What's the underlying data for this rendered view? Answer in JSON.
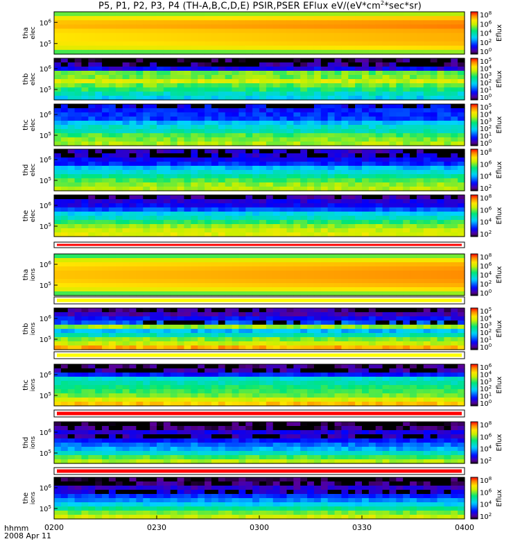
{
  "title": {
    "main": "P5, P1, P2, P3, P4 (TH-A,B,C,D,E) PSIR,PSER EFlux eV/(eV*cm",
    "exp": "2",
    "tail": "*sec*sr)"
  },
  "footer": {
    "format": "hhmm",
    "date": "2008 Apr 11"
  },
  "x_axis": {
    "ticks": [
      "0200",
      "0230",
      "0300",
      "0330",
      "0400"
    ],
    "range": [
      "02:00",
      "04:00"
    ]
  },
  "colorbar_label": "Eflux",
  "chart_data": [
    {
      "type": "heatmap",
      "name": "tha elec",
      "probe": "tha",
      "species": "elec",
      "y_ticks": [
        "10",
        "10"
      ],
      "y_exps": [
        "6",
        "5"
      ],
      "cbar_ticks": [
        "10",
        "10",
        "10",
        "10",
        "10"
      ],
      "cbar_exps": [
        "8",
        "6",
        "4",
        "2",
        "0"
      ],
      "cmap_range": [
        0,
        8
      ],
      "log_scale": true,
      "profile": [
        5.2,
        6.4,
        6.9,
        7.0,
        6.7,
        6.6,
        6.6,
        6.5,
        6.2,
        5.0
      ],
      "temporal": "increase",
      "noise": 0.0,
      "dark": []
    },
    {
      "type": "heatmap",
      "name": "thb elec",
      "probe": "thb",
      "species": "elec",
      "y_ticks": [
        "10",
        "10"
      ],
      "y_exps": [
        "6",
        "5"
      ],
      "cbar_ticks": [
        "10",
        "10",
        "10",
        "10",
        "10",
        "10"
      ],
      "cbar_exps": [
        "5",
        "4",
        "3",
        "2",
        "1",
        "0"
      ],
      "cmap_range": [
        0,
        5
      ],
      "log_scale": true,
      "profile": [
        0.2,
        0.4,
        0.8,
        3.1,
        3.2,
        3.6,
        3.1,
        2.8,
        2.3,
        2.0
      ],
      "temporal": "flat",
      "noise": 0.6,
      "dark": [
        0,
        1
      ]
    },
    {
      "type": "heatmap",
      "name": "thc elec",
      "probe": "thc",
      "species": "elec",
      "y_ticks": [
        "10",
        "10"
      ],
      "y_exps": [
        "6",
        "5"
      ],
      "cbar_ticks": [
        "10",
        "10",
        "10",
        "10",
        "10",
        "10"
      ],
      "cbar_exps": [
        "5",
        "4",
        "3",
        "2",
        "1",
        "0"
      ],
      "cmap_range": [
        0,
        5
      ],
      "log_scale": true,
      "profile": [
        0.9,
        1.0,
        1.1,
        1.2,
        1.8,
        2.2,
        2.4,
        3.0,
        3.2,
        3.4
      ],
      "temporal": "flat",
      "noise": 0.5,
      "dark": [
        0
      ]
    },
    {
      "type": "heatmap",
      "name": "thd elec",
      "probe": "thd",
      "species": "elec",
      "y_ticks": [
        "10",
        "10"
      ],
      "y_exps": [
        "6",
        "5"
      ],
      "cbar_ticks": [
        "10",
        "10",
        "10",
        "10"
      ],
      "cbar_exps": [
        "8",
        "6",
        "4",
        "2"
      ],
      "cmap_range": [
        1,
        8
      ],
      "log_scale": true,
      "profile": [
        1.8,
        2.0,
        2.2,
        2.5,
        3.5,
        4.0,
        4.6,
        5.2,
        5.6,
        5.8
      ],
      "temporal": "flat",
      "noise": 0.6,
      "dark": [
        0,
        1
      ]
    },
    {
      "type": "heatmap",
      "name": "the elec",
      "probe": "the",
      "species": "elec",
      "y_ticks": [
        "10",
        "10"
      ],
      "y_exps": [
        "6",
        "5"
      ],
      "cbar_ticks": [
        "10",
        "10",
        "10",
        "10"
      ],
      "cbar_exps": [
        "8",
        "6",
        "4",
        "2"
      ],
      "cmap_range": [
        1,
        8
      ],
      "log_scale": true,
      "profile": [
        1.6,
        2.0,
        2.2,
        2.8,
        3.8,
        4.2,
        5.0,
        5.6,
        6.0,
        6.2
      ],
      "temporal": "flat",
      "noise": 0.6,
      "dark": [
        0
      ]
    },
    {
      "type": "heatmap",
      "name": "tha ions",
      "probe": "tha",
      "species": "ions",
      "y_ticks": [
        "10",
        "10"
      ],
      "y_exps": [
        "6",
        "5"
      ],
      "cbar_ticks": [
        "10",
        "10",
        "10",
        "10",
        "10"
      ],
      "cbar_exps": [
        "8",
        "6",
        "4",
        "2",
        "0"
      ],
      "cmap_range": [
        0,
        8
      ],
      "log_scale": true,
      "profile": [
        4.8,
        6.0,
        6.6,
        6.8,
        6.9,
        6.9,
        6.8,
        6.6,
        6.2,
        5.0
      ],
      "temporal": "increase",
      "noise": 0.0,
      "dark": []
    },
    {
      "type": "heatmap",
      "name": "thb ions",
      "probe": "thb",
      "species": "ions",
      "y_ticks": [
        "10",
        "10"
      ],
      "y_exps": [
        "6",
        "5"
      ],
      "cbar_ticks": [
        "10",
        "10",
        "10",
        "10",
        "10",
        "10"
      ],
      "cbar_exps": [
        "5",
        "4",
        "3",
        "2",
        "1",
        "0"
      ],
      "cmap_range": [
        0,
        5
      ],
      "log_scale": true,
      "profile": [
        0.3,
        0.5,
        0.9,
        1.3,
        3.3,
        1.8,
        2.4,
        3.2,
        3.6,
        4.3
      ],
      "temporal": "flat",
      "noise": 0.5,
      "dark": [
        0,
        3
      ]
    },
    {
      "type": "heatmap",
      "name": "thc ions",
      "probe": "thc",
      "species": "ions",
      "y_ticks": [
        "10",
        "10"
      ],
      "y_exps": [
        "6",
        "5"
      ],
      "cbar_ticks": [
        "10",
        "10",
        "10",
        "10",
        "10",
        "10"
      ],
      "cbar_exps": [
        "6",
        "4",
        "3",
        "2",
        "1",
        "0"
      ],
      "cmap_range": [
        0,
        6
      ],
      "log_scale": true,
      "profile": [
        0.4,
        0.6,
        1.2,
        2.6,
        2.9,
        3.3,
        3.5,
        3.8,
        4.4,
        5.0
      ],
      "temporal": "flat",
      "noise": 0.5,
      "dark": [
        0,
        1
      ]
    },
    {
      "type": "heatmap",
      "name": "thd ions",
      "probe": "thd",
      "species": "ions",
      "y_ticks": [
        "10",
        "10"
      ],
      "y_exps": [
        "6",
        "5"
      ],
      "cbar_ticks": [
        "10",
        "10",
        "10",
        "10"
      ],
      "cbar_exps": [
        "8",
        "6",
        "4",
        "2"
      ],
      "cmap_range": [
        1,
        8
      ],
      "log_scale": true,
      "profile": [
        1.2,
        1.4,
        2.0,
        1.8,
        2.4,
        3.0,
        3.4,
        4.2,
        5.2,
        5.8
      ],
      "temporal": "flat",
      "noise": 0.6,
      "dark": [
        0,
        1,
        3
      ]
    },
    {
      "type": "heatmap",
      "name": "the ions",
      "probe": "the",
      "species": "ions",
      "y_ticks": [
        "10",
        "10"
      ],
      "y_exps": [
        "6",
        "5"
      ],
      "cbar_ticks": [
        "10",
        "10",
        "10",
        "10"
      ],
      "cbar_exps": [
        "8",
        "6",
        "4",
        "2"
      ],
      "cmap_range": [
        1,
        8
      ],
      "log_scale": true,
      "profile": [
        1.2,
        1.4,
        1.8,
        2.0,
        2.6,
        3.2,
        3.8,
        4.6,
        5.4,
        6.0
      ],
      "temporal": "flat",
      "noise": 0.6,
      "dark": [
        0,
        1,
        3
      ]
    }
  ],
  "mode_bars": [
    {
      "color": "#ff0000"
    },
    {
      "color": "#ffff00"
    },
    {
      "color": "#ffff00"
    },
    {
      "color": "#ff0000"
    },
    {
      "color": "#ff0000"
    }
  ]
}
